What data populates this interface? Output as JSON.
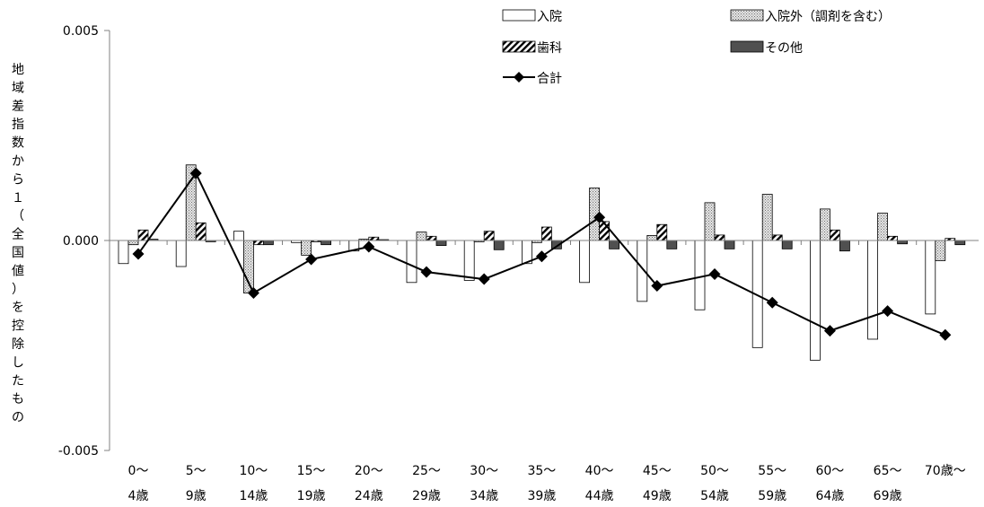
{
  "chart_data": {
    "type": "bar",
    "ylabel_chars": [
      "地",
      "域",
      "差",
      "指",
      "数",
      "か",
      "ら",
      "１",
      "（",
      "全",
      "国",
      "値",
      "）",
      "を",
      "控",
      "除",
      "し",
      "た",
      "も",
      "の"
    ],
    "categories": [
      [
        "0～",
        "4歳"
      ],
      [
        "5～",
        "9歳"
      ],
      [
        "10～",
        "14歳"
      ],
      [
        "15～",
        "19歳"
      ],
      [
        "20～",
        "24歳"
      ],
      [
        "25～",
        "29歳"
      ],
      [
        "30～",
        "34歳"
      ],
      [
        "35～",
        "39歳"
      ],
      [
        "40～",
        "44歳"
      ],
      [
        "45～",
        "49歳"
      ],
      [
        "50～",
        "54歳"
      ],
      [
        "55～",
        "59歳"
      ],
      [
        "60～",
        "64歳"
      ],
      [
        "65～",
        "69歳"
      ],
      [
        "70歳～",
        ""
      ]
    ],
    "yticks": [
      "0.005",
      "0.000",
      "-0.005"
    ],
    "ytick_values": [
      0.005,
      0.0,
      -0.005
    ],
    "ylim": [
      -0.005,
      0.005
    ],
    "grid": false,
    "legend_position": "top-right",
    "series": [
      {
        "name": "入院",
        "kind": "bar",
        "pattern": "white",
        "values": [
          -0.00055,
          -0.00062,
          0.00022,
          -5e-05,
          -0.00025,
          -0.001,
          -0.00095,
          -0.00055,
          -0.001,
          -0.00145,
          -0.00165,
          -0.00255,
          -0.00285,
          -0.00235,
          -0.00175
        ]
      },
      {
        "name": "入院外（調剤を含む）",
        "kind": "bar",
        "pattern": "dotted",
        "values": [
          -0.0001,
          0.0018,
          -0.00125,
          -0.00035,
          3e-05,
          0.0002,
          -3e-05,
          -5e-05,
          0.00125,
          0.00012,
          0.0009,
          0.0011,
          0.00075,
          0.00065,
          -0.00048
        ]
      },
      {
        "name": "歯科",
        "kind": "bar",
        "pattern": "hatched",
        "values": [
          0.00025,
          0.00042,
          -0.0001,
          -3e-05,
          8e-05,
          0.0001,
          0.00022,
          0.00032,
          0.00045,
          0.00038,
          0.00013,
          0.00013,
          0.00025,
          0.0001,
          5e-05
        ]
      },
      {
        "name": "その他",
        "kind": "bar",
        "pattern": "dark",
        "values": [
          3e-05,
          -3e-05,
          -0.0001,
          -0.0001,
          2e-05,
          -0.00012,
          -0.00022,
          -0.0002,
          -0.0002,
          -0.0002,
          -0.0002,
          -0.0002,
          -0.00025,
          -8e-05,
          -0.0001
        ]
      },
      {
        "name": "合計",
        "kind": "line",
        "values": [
          -0.00032,
          0.0016,
          -0.00125,
          -0.00045,
          -0.00015,
          -0.00075,
          -0.00092,
          -0.00038,
          0.00055,
          -0.00108,
          -0.0008,
          -0.00148,
          -0.00215,
          -0.00168,
          -0.00225
        ]
      }
    ]
  },
  "colors": {
    "bar_outline": "#000000",
    "bar_white": "#ffffff",
    "bar_dotted_bg": "#e6e6e6",
    "bar_dotted_dot": "#707070",
    "bar_hatch": "#000000",
    "bar_dark": "#505050",
    "line": "#000000",
    "axis": "#808080"
  }
}
